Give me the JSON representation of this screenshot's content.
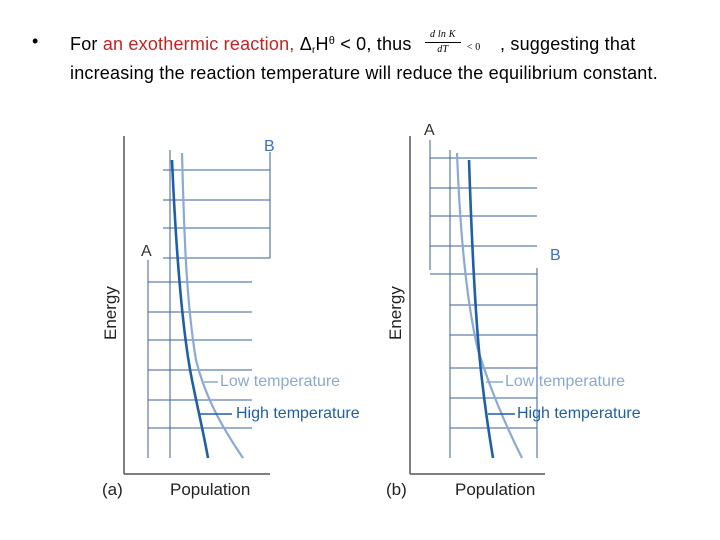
{
  "bullet": {
    "dot": "•",
    "prefix": "For ",
    "highlight": "an exothermic reaction,",
    "delta": " Δ",
    "sub_r": "r",
    "H": "H",
    "sup_theta": "θ",
    "lt_zero": " < 0, thus ",
    "formula_num": "d ln K",
    "formula_den": "dT",
    "formula_rel": "< 0",
    "suffix": " , suggesting that increasing the reaction temperature will reduce the equilibrium constant."
  },
  "colors": {
    "highlight": "#cc1f1f",
    "low_temp_curve": "#8aa9d6",
    "high_temp_curve": "#1f5fa8",
    "levels": "#3a5f9a"
  },
  "panels": [
    {
      "tag": "(a)",
      "ylabel": "Energy",
      "xlabel": "Population",
      "point_a": "A",
      "point_b": "B",
      "low_label": "Low temperature",
      "high_label": "High temperature"
    },
    {
      "tag": "(b)",
      "ylabel": "Energy",
      "xlabel": "Population",
      "point_a": "A",
      "point_b": "B",
      "low_label": "Low temperature",
      "high_label": "High temperature"
    }
  ]
}
